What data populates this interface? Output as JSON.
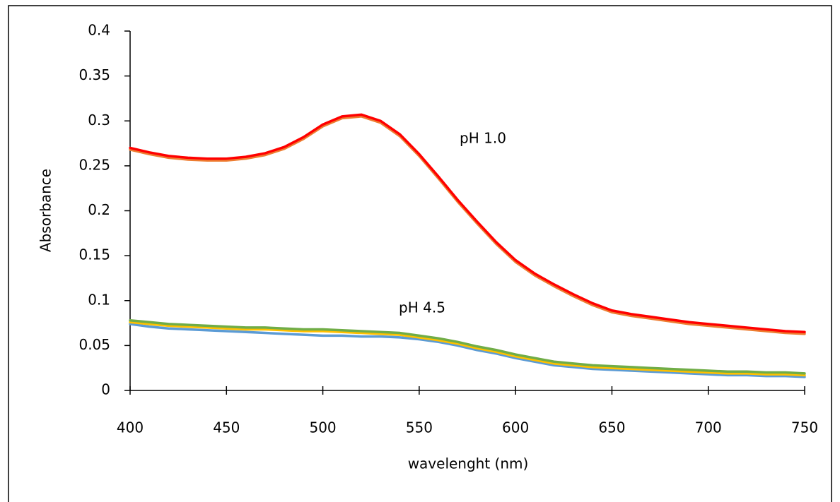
{
  "chart_data": {
    "type": "line",
    "x_label": "wavelenght (nm)",
    "y_label": "Absorbance",
    "annotations": [
      "pH 1.0",
      "pH 4.5"
    ],
    "x": [
      400,
      410,
      420,
      430,
      440,
      450,
      460,
      470,
      480,
      490,
      500,
      510,
      520,
      530,
      540,
      550,
      560,
      570,
      580,
      590,
      600,
      610,
      620,
      630,
      640,
      650,
      660,
      670,
      680,
      690,
      700,
      710,
      720,
      730,
      740,
      750
    ],
    "series": [
      {
        "color": "#5b9bd5",
        "values": [
          0.074,
          0.071,
          0.069,
          0.068,
          0.067,
          0.066,
          0.065,
          0.064,
          0.063,
          0.062,
          0.061,
          0.061,
          0.06,
          0.06,
          0.059,
          0.057,
          0.054,
          0.05,
          0.045,
          0.041,
          0.036,
          0.032,
          0.028,
          0.026,
          0.024,
          0.023,
          0.022,
          0.021,
          0.02,
          0.019,
          0.018,
          0.017,
          0.017,
          0.016,
          0.016,
          0.015
        ]
      },
      {
        "color": "#ffc000",
        "values": [
          0.076,
          0.074,
          0.072,
          0.071,
          0.07,
          0.069,
          0.068,
          0.068,
          0.067,
          0.066,
          0.066,
          0.065,
          0.064,
          0.063,
          0.062,
          0.059,
          0.056,
          0.052,
          0.047,
          0.043,
          0.038,
          0.034,
          0.03,
          0.028,
          0.026,
          0.025,
          0.024,
          0.023,
          0.022,
          0.021,
          0.02,
          0.019,
          0.019,
          0.018,
          0.018,
          0.017
        ]
      },
      {
        "color": "#70ad47",
        "values": [
          0.078,
          0.076,
          0.074,
          0.073,
          0.072,
          0.071,
          0.07,
          0.07,
          0.069,
          0.068,
          0.068,
          0.067,
          0.066,
          0.065,
          0.064,
          0.061,
          0.058,
          0.054,
          0.049,
          0.045,
          0.04,
          0.036,
          0.032,
          0.03,
          0.028,
          0.027,
          0.026,
          0.025,
          0.024,
          0.023,
          0.022,
          0.021,
          0.021,
          0.02,
          0.02,
          0.019
        ]
      },
      {
        "color": "#ed7d31",
        "values": [
          0.268,
          0.263,
          0.259,
          0.257,
          0.256,
          0.256,
          0.258,
          0.262,
          0.269,
          0.28,
          0.294,
          0.303,
          0.305,
          0.298,
          0.283,
          0.261,
          0.236,
          0.21,
          0.186,
          0.163,
          0.143,
          0.128,
          0.116,
          0.105,
          0.095,
          0.087,
          0.083,
          0.08,
          0.077,
          0.074,
          0.072,
          0.07,
          0.068,
          0.066,
          0.064,
          0.063
        ]
      },
      {
        "color": "#ff0000",
        "values": [
          0.27,
          0.265,
          0.261,
          0.259,
          0.258,
          0.258,
          0.26,
          0.264,
          0.271,
          0.282,
          0.296,
          0.305,
          0.307,
          0.3,
          0.285,
          0.263,
          0.238,
          0.212,
          0.188,
          0.165,
          0.145,
          0.13,
          0.118,
          0.107,
          0.097,
          0.089,
          0.085,
          0.082,
          0.079,
          0.076,
          0.074,
          0.072,
          0.07,
          0.068,
          0.066,
          0.065
        ]
      }
    ],
    "xlim": [
      400,
      750
    ],
    "ylim": [
      0,
      0.4
    ],
    "xticks": [
      400,
      450,
      500,
      550,
      600,
      650,
      700,
      750
    ],
    "yticks": [
      0,
      0.05,
      0.1,
      0.15,
      0.2,
      0.25,
      0.3,
      0.35,
      0.4
    ]
  }
}
